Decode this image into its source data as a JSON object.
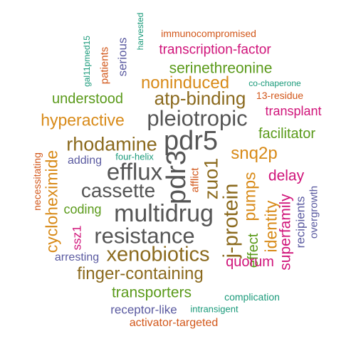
{
  "palette": {
    "gray": "#555555",
    "brown": "#8B6A1E",
    "olive_green": "#5A9A1A",
    "magenta": "#D0147A",
    "orange": "#D88A18",
    "purple": "#5A5AA0",
    "teal": "#1A9A7A",
    "dark_orange": "#D2571A"
  },
  "words": [
    {
      "text": "immunocompromised",
      "color": "#D2571A"
    },
    {
      "text": "harvested",
      "color": "#1A9A7A"
    },
    {
      "text": "gal11pmed15",
      "color": "#1A9A7A"
    },
    {
      "text": "patients",
      "color": "#D2571A"
    },
    {
      "text": "serious",
      "color": "#5A5AA0"
    },
    {
      "text": "transcription-factor",
      "color": "#D0147A"
    },
    {
      "text": "serinethreonine",
      "color": "#5A9A1A"
    },
    {
      "text": "noninduced",
      "color": "#D88A18"
    },
    {
      "text": "co-chaperone",
      "color": "#1A9A7A"
    },
    {
      "text": "understood",
      "color": "#5A9A1A"
    },
    {
      "text": "atp-binding",
      "color": "#8B6A1E"
    },
    {
      "text": "13-residue",
      "color": "#D2571A"
    },
    {
      "text": "pleiotropic",
      "color": "#555555"
    },
    {
      "text": "transplant",
      "color": "#D0147A"
    },
    {
      "text": "hyperactive",
      "color": "#D88A18"
    },
    {
      "text": "facilitator",
      "color": "#5A9A1A"
    },
    {
      "text": "rhodamine",
      "color": "#8B6A1E"
    },
    {
      "text": "pdr5",
      "color": "#555555"
    },
    {
      "text": "snq2p",
      "color": "#D88A18"
    },
    {
      "text": "necessitating",
      "color": "#D2571A"
    },
    {
      "text": "cycloheximide",
      "color": "#D88A18"
    },
    {
      "text": "adding",
      "color": "#5A5AA0"
    },
    {
      "text": "four-helix",
      "color": "#1A9A7A"
    },
    {
      "text": "efflux",
      "color": "#555555"
    },
    {
      "text": "pdr3",
      "color": "#555555"
    },
    {
      "text": "afflict",
      "color": "#D2571A"
    },
    {
      "text": "zuo1",
      "color": "#8B6A1E"
    },
    {
      "text": "delay",
      "color": "#D0147A"
    },
    {
      "text": "overgrowth",
      "color": "#5A5AA0"
    },
    {
      "text": "cassette",
      "color": "#555555"
    },
    {
      "text": "pumps",
      "color": "#D88A18"
    },
    {
      "text": "coding",
      "color": "#5A9A1A"
    },
    {
      "text": "j-protein",
      "color": "#8B6A1E"
    },
    {
      "text": "identity",
      "color": "#D88A18"
    },
    {
      "text": "recipients",
      "color": "#5A5AA0"
    },
    {
      "text": "ssz1",
      "color": "#D0147A"
    },
    {
      "text": "multidrug",
      "color": "#555555"
    },
    {
      "text": "superfamily",
      "color": "#D0147A"
    },
    {
      "text": "resistance",
      "color": "#555555"
    },
    {
      "text": "effect",
      "color": "#5A9A1A"
    },
    {
      "text": "arresting",
      "color": "#5A5AA0"
    },
    {
      "text": "xenobiotics",
      "color": "#8B6A1E"
    },
    {
      "text": "quorum",
      "color": "#D0147A"
    },
    {
      "text": "finger-containing",
      "color": "#8B6A1E"
    },
    {
      "text": "transporters",
      "color": "#5A9A1A"
    },
    {
      "text": "complication",
      "color": "#1A9A7A"
    },
    {
      "text": "receptor-like",
      "color": "#5A5AA0"
    },
    {
      "text": "intransigent",
      "color": "#1A9A7A"
    },
    {
      "text": "activator-targeted",
      "color": "#D2571A"
    }
  ]
}
